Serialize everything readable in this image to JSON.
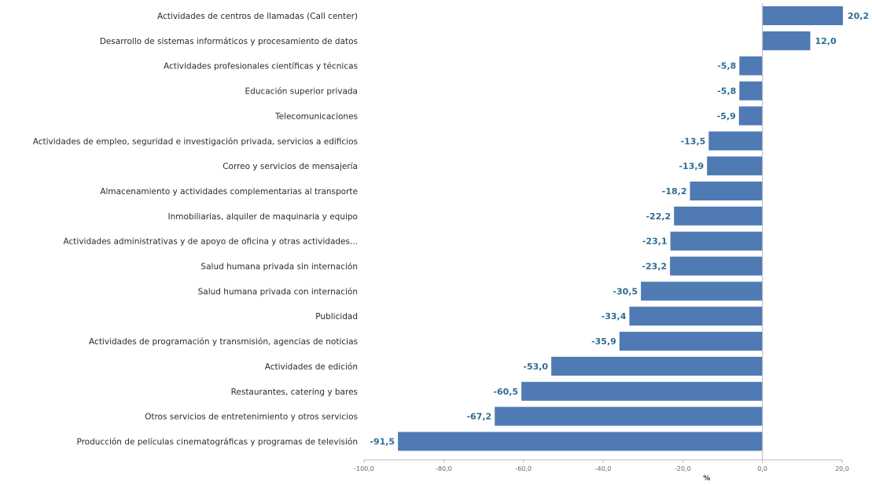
{
  "chart_data": {
    "type": "bar",
    "orientation": "horizontal",
    "categories": [
      "Actividades de centros de llamadas (Call center)",
      "Desarrollo de sistemas informáticos y procesamiento de datos",
      "Actividades profesionales científicas y técnicas",
      "Educación superior privada",
      "Telecomunicaciones",
      "Actividades de empleo, seguridad e investigación privada, servicios a edificios",
      "Correo y servicios de mensajería",
      "Almacenamiento y actividades complementarias al transporte",
      "Inmobiliarias, alquiler de maquinaria y equipo",
      "Actividades administrativas y de apoyo de oficina y otras actividades...",
      "Salud humana privada sin internación",
      "Salud humana privada con internación",
      "Publicidad",
      "Actividades de programación y transmisión,  agencias de noticias",
      "Actividades de edición",
      "Restaurantes, catering y bares",
      "Otros servicios de entretenimiento y otros servicios",
      "Producción de películas cinematográficas y programas de televisión"
    ],
    "values": [
      20.2,
      12.0,
      -5.8,
      -5.8,
      -5.9,
      -13.5,
      -13.9,
      -18.2,
      -22.2,
      -23.1,
      -23.2,
      -30.5,
      -33.4,
      -35.9,
      -53.0,
      -60.5,
      -67.2,
      -91.5
    ],
    "value_labels": [
      "20,2",
      "12,0",
      "-5,8",
      "-5,8",
      "-5,9",
      "-13,5",
      "-13,9",
      "-18,2",
      "-22,2",
      "-23,1",
      "-23,2",
      "-30,5",
      "-33,4",
      "-35,9",
      "-53,0",
      "-60,5",
      "-67,2",
      "-91,5"
    ],
    "xlim": [
      -100,
      20
    ],
    "xticks": [
      -100,
      -80,
      -60,
      -40,
      -20,
      0,
      20
    ],
    "xtick_labels": [
      "-100,0",
      "-80,0",
      "-60,0",
      "-40,0",
      "-20,0",
      "0,0",
      "20,0"
    ],
    "xlabel": "%",
    "title": "",
    "ylabel": "",
    "grid": false,
    "colors": {
      "bar": "#4f7ab4",
      "value_label": "#2e6c94",
      "axis": "#b8b8b8"
    }
  }
}
